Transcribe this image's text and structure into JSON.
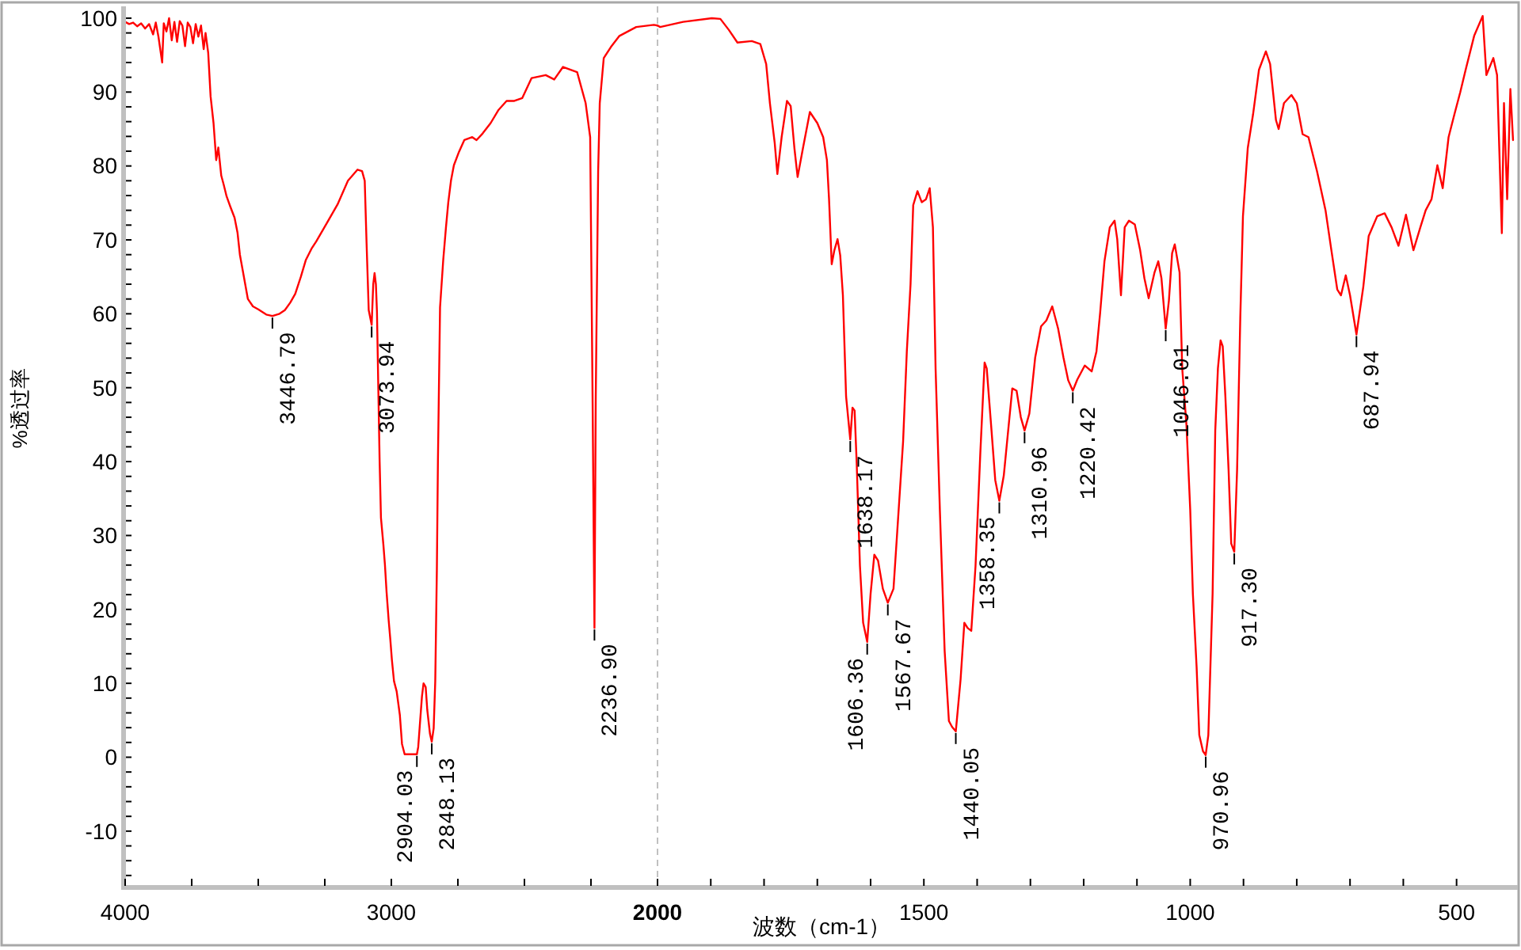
{
  "chart_data": [
    {
      "type": "line",
      "ylabel": "%透过率",
      "xlim": [
        4000,
        2000
      ],
      "ylim": [
        -17.3,
        101.6
      ],
      "xticks": [
        4000,
        {
          "value": 3750,
          "label": null
        },
        {
          "value": 3500,
          "label": null
        },
        {
          "value": 3250,
          "label": null
        },
        3000,
        {
          "value": 2750,
          "label": null
        },
        {
          "value": 2500,
          "label": null
        },
        {
          "value": 2250,
          "label": null
        }
      ],
      "yticks": [
        {
          "value": -16,
          "label": null
        },
        {
          "value": -14,
          "label": null
        },
        {
          "value": -12,
          "label": null
        },
        -10,
        {
          "value": -8,
          "label": null
        },
        {
          "value": -6,
          "label": null
        },
        {
          "value": -4,
          "label": null
        },
        {
          "value": -2,
          "label": null
        },
        0,
        {
          "value": 2,
          "label": null
        },
        {
          "value": 4,
          "label": null
        },
        {
          "value": 6,
          "label": null
        },
        {
          "value": 8,
          "label": null
        },
        10,
        {
          "value": 12,
          "label": null
        },
        {
          "value": 14,
          "label": null
        },
        {
          "value": 16,
          "label": null
        },
        {
          "value": 18,
          "label": null
        },
        20,
        {
          "value": 22,
          "label": null
        },
        {
          "value": 24,
          "label": null
        },
        {
          "value": 26,
          "label": null
        },
        {
          "value": 28,
          "label": null
        },
        30,
        {
          "value": 32,
          "label": null
        },
        {
          "value": 34,
          "label": null
        },
        {
          "value": 36,
          "label": null
        },
        {
          "value": 38,
          "label": null
        },
        40,
        {
          "value": 42,
          "label": null
        },
        {
          "value": 44,
          "label": null
        },
        {
          "value": 46,
          "label": null
        },
        {
          "value": 48,
          "label": null
        },
        50,
        {
          "value": 52,
          "label": null
        },
        {
          "value": 54,
          "label": null
        },
        {
          "value": 56,
          "label": null
        },
        {
          "value": 58,
          "label": null
        },
        60,
        {
          "value": 62,
          "label": null
        },
        {
          "value": 64,
          "label": null
        },
        {
          "value": 66,
          "label": null
        },
        {
          "value": 68,
          "label": null
        },
        70,
        {
          "value": 72,
          "label": null
        },
        {
          "value": 74,
          "label": null
        },
        {
          "value": 76,
          "label": null
        },
        {
          "value": 78,
          "label": null
        },
        80,
        {
          "value": 82,
          "label": null
        },
        {
          "value": 84,
          "label": null
        },
        {
          "value": 86,
          "label": null
        },
        {
          "value": 88,
          "label": null
        },
        90,
        {
          "value": 92,
          "label": null
        },
        {
          "value": 94,
          "label": null
        },
        {
          "value": 96,
          "label": null
        },
        {
          "value": 98,
          "label": null
        },
        100
      ],
      "color": "#ff0000",
      "x": [
        4000,
        3985,
        3970,
        3955,
        3940,
        3925,
        3910,
        3895,
        3885,
        3875,
        3861,
        3855,
        3845,
        3835,
        3825,
        3815,
        3805,
        3795,
        3785,
        3775,
        3765,
        3755,
        3745,
        3735,
        3725,
        3715,
        3705,
        3698,
        3688,
        3679,
        3668,
        3658,
        3650,
        3639,
        3630,
        3619,
        3605,
        3589,
        3578,
        3569,
        3555,
        3539,
        3520,
        3500,
        3470,
        3446.79,
        3420,
        3400,
        3380,
        3361,
        3340,
        3321,
        3300,
        3282,
        3242,
        3202,
        3163,
        3127,
        3110,
        3100,
        3093,
        3085,
        3073.94,
        3068,
        3063,
        3058,
        3054,
        3044,
        3039,
        3030,
        3024,
        3018,
        3010,
        3004,
        2998,
        2990,
        2980,
        2968,
        2960,
        2950,
        2930,
        2904.03,
        2899,
        2891,
        2885,
        2879,
        2871,
        2865,
        2855,
        2848.13,
        2841,
        2835,
        2829,
        2825,
        2817,
        2805,
        2795,
        2786,
        2776,
        2765,
        2746,
        2726,
        2696,
        2680,
        2657,
        2627,
        2597,
        2567,
        2538,
        2508,
        2473,
        2420,
        2388,
        2355,
        2302,
        2270,
        2253,
        2244,
        2236.9,
        2232,
        2223,
        2217,
        2202,
        2175,
        2143,
        2080,
        2014,
        2000
      ],
      "values": [
        99.5,
        99.2,
        99.4,
        98.9,
        99.3,
        98.6,
        99.2,
        97.8,
        99.4,
        97.5,
        94.0,
        99.3,
        98.2,
        100.0,
        97.0,
        99.5,
        96.8,
        99.6,
        99.0,
        96.2,
        99.4,
        98.8,
        96.6,
        99.2,
        97.5,
        99.0,
        95.8,
        98.0,
        95.3,
        89.4,
        85.8,
        80.8,
        82.5,
        78.7,
        77.5,
        75.9,
        74.5,
        73.0,
        71.0,
        68.0,
        65.2,
        62.0,
        61.0,
        60.6,
        59.9,
        59.7,
        60.0,
        60.5,
        61.5,
        62.7,
        65.0,
        67.3,
        68.8,
        69.8,
        72.3,
        74.8,
        78.0,
        79.5,
        79.3,
        78.0,
        69.5,
        60.5,
        58.5,
        64.0,
        65.5,
        64.0,
        60.2,
        40.0,
        32.4,
        28.8,
        26.0,
        22.4,
        18.5,
        16.0,
        13.2,
        10.3,
        8.9,
        5.7,
        1.8,
        0.4,
        0.4,
        0.4,
        1.4,
        5.3,
        8.2,
        10.0,
        9.5,
        6.4,
        3.2,
        2.1,
        3.9,
        10.3,
        25.3,
        40.0,
        60.9,
        67.3,
        71.6,
        75.1,
        78.0,
        80.1,
        81.9,
        83.5,
        83.9,
        83.5,
        84.4,
        85.8,
        87.6,
        88.8,
        88.8,
        89.2,
        91.9,
        92.3,
        91.7,
        93.4,
        92.7,
        88.5,
        83.9,
        48.8,
        17.5,
        48.8,
        79.3,
        88.5,
        94.6,
        96.1,
        97.6,
        98.8,
        99.1,
        99.0
      ],
      "annotations": [
        {
          "text": "3446.79",
          "x": 3446.79,
          "y": 59.7
        },
        {
          "text": "3073.94",
          "x": 3073.94,
          "y": 58.5
        },
        {
          "text": "2904.03",
          "x": 2904.03,
          "y": 0.4
        },
        {
          "text": "2848.13",
          "x": 2848.13,
          "y": 2.1
        },
        {
          "text": "2236.90",
          "x": 2236.9,
          "y": 17.5
        }
      ]
    },
    {
      "type": "line",
      "xlabel": "波数（cm-1）",
      "xlim": [
        2000,
        385
      ],
      "ylim": [
        -17.3,
        101.6
      ],
      "tick_labels": "x",
      "xticks": [
        2000,
        {
          "value": 1900,
          "label": null
        },
        {
          "value": 1800,
          "label": null
        },
        {
          "value": 1700,
          "label": null
        },
        {
          "value": 1600,
          "label": null
        },
        1500,
        {
          "value": 1400,
          "label": null
        },
        {
          "value": 1300,
          "label": null
        },
        {
          "value": 1200,
          "label": null
        },
        {
          "value": 1100,
          "label": null
        },
        1000,
        {
          "value": 900,
          "label": null
        },
        {
          "value": 800,
          "label": null
        },
        {
          "value": 700,
          "label": null
        },
        {
          "value": 600,
          "label": null
        },
        500
      ],
      "color": "#ff0000",
      "x": [
        2000,
        1995,
        1952,
        1898,
        1882,
        1866,
        1850,
        1823,
        1807,
        1796,
        1789,
        1780,
        1775,
        1767,
        1757,
        1750,
        1743,
        1737,
        1727,
        1714,
        1700,
        1689,
        1682,
        1678,
        1673,
        1668,
        1662,
        1657,
        1652,
        1646,
        1638.17,
        1634,
        1630,
        1626,
        1620,
        1614,
        1606.36,
        1600,
        1593,
        1586,
        1577,
        1567.67,
        1557,
        1550,
        1539,
        1532,
        1525,
        1520,
        1512,
        1504,
        1496,
        1489,
        1483,
        1478,
        1470,
        1461,
        1453,
        1447,
        1440.05,
        1431,
        1424,
        1418,
        1411,
        1403,
        1394,
        1386,
        1382,
        1373,
        1366,
        1358.35,
        1350,
        1334,
        1326,
        1318,
        1310.96,
        1302,
        1291,
        1280,
        1270,
        1259,
        1248,
        1238,
        1229,
        1220.42,
        1212,
        1198,
        1185,
        1176,
        1169,
        1161,
        1151,
        1142,
        1137,
        1130,
        1123,
        1115,
        1104,
        1094,
        1086,
        1078,
        1067,
        1060,
        1054,
        1046.01,
        1040,
        1034,
        1029,
        1020,
        1015,
        1007,
        1000,
        995,
        988,
        983,
        976,
        970.96,
        966,
        958,
        953,
        948,
        943,
        939,
        934,
        928,
        923,
        917.3,
        912,
        906,
        901,
        892,
        882,
        871,
        858,
        850,
        839,
        834,
        824,
        810,
        800,
        789,
        778,
        762,
        746,
        735,
        724,
        717,
        708,
        700,
        687.94,
        675,
        665,
        649,
        635,
        622,
        609,
        595,
        581,
        568,
        558,
        547,
        536,
        526,
        515,
        504,
        493,
        483,
        467,
        451,
        444,
        431,
        424,
        415,
        411,
        405,
        399,
        394
      ],
      "values": [
        99.0,
        98.8,
        99.5,
        100.0,
        99.9,
        98.4,
        96.7,
        96.9,
        96.5,
        93.8,
        88.5,
        83.1,
        78.9,
        83.9,
        88.8,
        88.1,
        82.4,
        78.5,
        82.4,
        87.3,
        85.8,
        83.9,
        80.8,
        75.5,
        66.7,
        68.6,
        70.1,
        67.9,
        62.5,
        48.8,
        43.0,
        47.3,
        46.9,
        39.6,
        25.9,
        18.2,
        15.6,
        22.1,
        27.4,
        26.6,
        22.8,
        20.9,
        22.8,
        30.5,
        42.7,
        54.9,
        64.0,
        74.7,
        76.6,
        75.1,
        75.5,
        77.0,
        71.7,
        52.6,
        33.5,
        14.4,
        4.9,
        4.1,
        3.5,
        10.6,
        18.2,
        17.5,
        17.1,
        25.9,
        41.2,
        53.4,
        52.6,
        44.2,
        37.5,
        34.7,
        38.1,
        49.9,
        49.6,
        46.0,
        44.2,
        46.5,
        54.1,
        58.3,
        59.1,
        61.0,
        58.0,
        54.1,
        51.0,
        49.6,
        51.1,
        53.0,
        52.2,
        54.9,
        60.2,
        67.1,
        71.7,
        72.6,
        70.1,
        62.5,
        71.7,
        72.6,
        72.1,
        68.6,
        64.8,
        62.1,
        65.6,
        67.1,
        64.8,
        58.0,
        61.8,
        68.2,
        69.4,
        65.6,
        52.6,
        44.9,
        33.5,
        22.1,
        12.2,
        3.0,
        0.8,
        0.3,
        3.0,
        22.1,
        44.2,
        52.6,
        56.4,
        55.6,
        48.8,
        38.9,
        28.9,
        27.8,
        38.9,
        59.5,
        73.2,
        82.4,
        87.0,
        93.0,
        95.5,
        93.8,
        86.2,
        85.0,
        88.5,
        89.6,
        88.5,
        84.3,
        83.9,
        79.3,
        74.0,
        68.6,
        63.3,
        62.5,
        65.2,
        62.5,
        57.2,
        63.7,
        70.5,
        73.2,
        73.6,
        71.7,
        69.2,
        73.4,
        68.6,
        71.7,
        74.0,
        75.5,
        80.1,
        77.0,
        83.9,
        87.0,
        90.0,
        93.0,
        97.6,
        100.3,
        92.3,
        94.6,
        92.3,
        70.9,
        88.5,
        75.5,
        90.4,
        83.5
      ],
      "ref_lines": [
        {
          "axis": "x",
          "value": 2000,
          "color": "#c0c0c0",
          "line_style": "dashed"
        }
      ],
      "annotations": [
        {
          "text": "1638.17",
          "x": 1638.17,
          "y": 43.0
        },
        {
          "text": "1606.36",
          "x": 1606.36,
          "y": 15.6
        },
        {
          "text": "1567.67",
          "x": 1567.67,
          "y": 20.9
        },
        {
          "text": "1440.05",
          "x": 1440.05,
          "y": 3.5
        },
        {
          "text": "1358.35",
          "x": 1358.35,
          "y": 34.7
        },
        {
          "text": "1310.96",
          "x": 1310.96,
          "y": 44.2
        },
        {
          "text": "1220.42",
          "x": 1220.42,
          "y": 49.6
        },
        {
          "text": "1046.01",
          "x": 1046.01,
          "y": 58.0
        },
        {
          "text": "970.96",
          "x": 970.96,
          "y": 0.3
        },
        {
          "text": "917.30",
          "x": 917.3,
          "y": 27.8
        },
        {
          "text": "687.94",
          "x": 687.94,
          "y": 57.2
        }
      ]
    }
  ]
}
